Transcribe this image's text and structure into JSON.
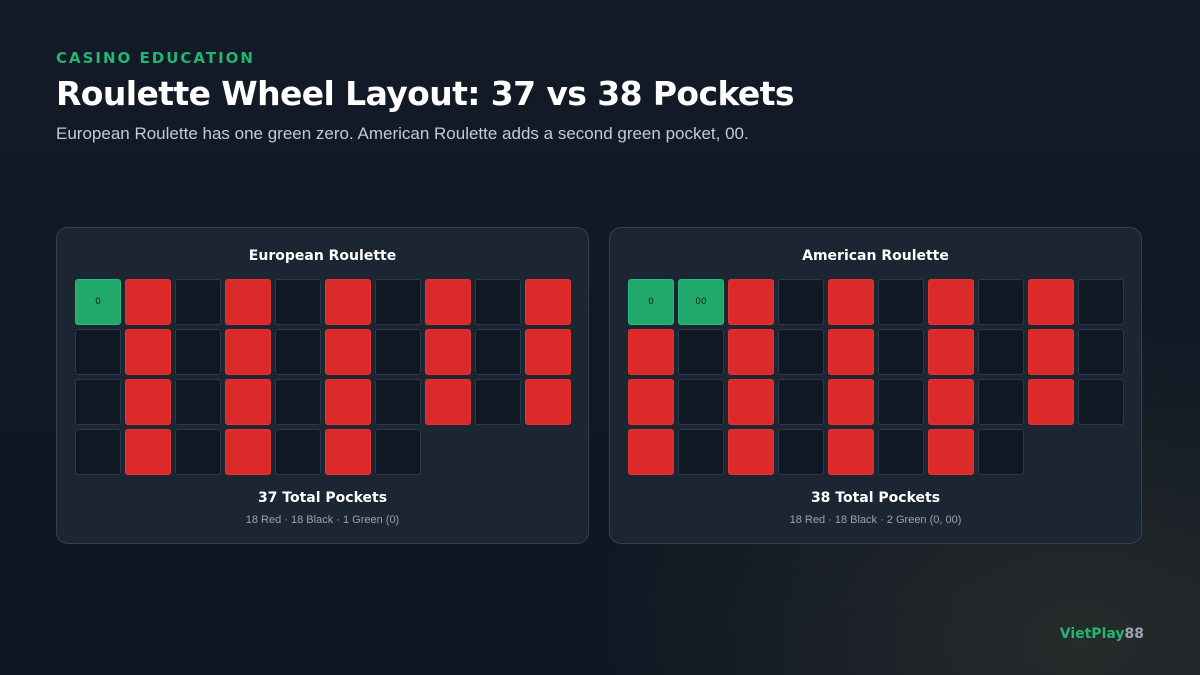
{
  "header": {
    "eyebrow": "CASINO EDUCATION",
    "title": "Roulette Wheel Layout: 37 vs 38 Pockets",
    "subtitle": "European Roulette has one green zero. American Roulette adds a second green pocket, 00."
  },
  "colors": {
    "green": "#20a96b",
    "red": "#dc2a2a",
    "black": "#101824",
    "accent": "#22b573"
  },
  "panels": [
    {
      "id": "european",
      "title": "European Roulette",
      "total": "37 Total Pockets",
      "breakdown": "18 Red · 18 Black · 1 Green (0)",
      "pockets": [
        {
          "c": "green",
          "label": "0"
        },
        {
          "c": "red"
        },
        {
          "c": "black"
        },
        {
          "c": "red"
        },
        {
          "c": "black"
        },
        {
          "c": "red"
        },
        {
          "c": "black"
        },
        {
          "c": "red"
        },
        {
          "c": "black"
        },
        {
          "c": "red"
        },
        {
          "c": "black"
        },
        {
          "c": "red"
        },
        {
          "c": "black"
        },
        {
          "c": "red"
        },
        {
          "c": "black"
        },
        {
          "c": "red"
        },
        {
          "c": "black"
        },
        {
          "c": "red"
        },
        {
          "c": "black"
        },
        {
          "c": "red"
        },
        {
          "c": "black"
        },
        {
          "c": "red"
        },
        {
          "c": "black"
        },
        {
          "c": "red"
        },
        {
          "c": "black"
        },
        {
          "c": "red"
        },
        {
          "c": "black"
        },
        {
          "c": "red"
        },
        {
          "c": "black"
        },
        {
          "c": "red"
        },
        {
          "c": "black"
        },
        {
          "c": "red"
        },
        {
          "c": "black"
        },
        {
          "c": "red"
        },
        {
          "c": "black"
        },
        {
          "c": "red"
        },
        {
          "c": "black"
        }
      ]
    },
    {
      "id": "american",
      "title": "American Roulette",
      "total": "38 Total Pockets",
      "breakdown": "18 Red · 18 Black · 2 Green (0, 00)",
      "pockets": [
        {
          "c": "green",
          "label": "0"
        },
        {
          "c": "green",
          "label": "00"
        },
        {
          "c": "red"
        },
        {
          "c": "black"
        },
        {
          "c": "red"
        },
        {
          "c": "black"
        },
        {
          "c": "red"
        },
        {
          "c": "black"
        },
        {
          "c": "red"
        },
        {
          "c": "black"
        },
        {
          "c": "red"
        },
        {
          "c": "black"
        },
        {
          "c": "red"
        },
        {
          "c": "black"
        },
        {
          "c": "red"
        },
        {
          "c": "black"
        },
        {
          "c": "red"
        },
        {
          "c": "black"
        },
        {
          "c": "red"
        },
        {
          "c": "black"
        },
        {
          "c": "red"
        },
        {
          "c": "black"
        },
        {
          "c": "red"
        },
        {
          "c": "black"
        },
        {
          "c": "red"
        },
        {
          "c": "black"
        },
        {
          "c": "red"
        },
        {
          "c": "black"
        },
        {
          "c": "red"
        },
        {
          "c": "black"
        },
        {
          "c": "red"
        },
        {
          "c": "black"
        },
        {
          "c": "red"
        },
        {
          "c": "black"
        },
        {
          "c": "red"
        },
        {
          "c": "black"
        },
        {
          "c": "red"
        },
        {
          "c": "black"
        }
      ]
    }
  ],
  "brand": {
    "part1": "VietPlay",
    "part2": "88"
  }
}
